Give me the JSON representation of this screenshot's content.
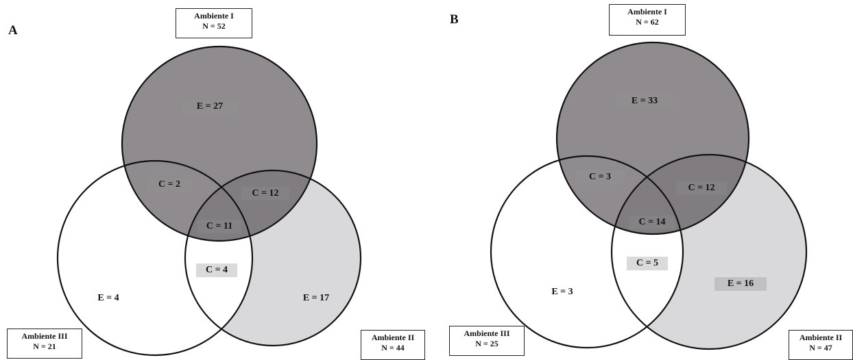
{
  "panels": [
    {
      "letter": "A",
      "env1": {
        "name": "Ambiente I",
        "n": "N = 52"
      },
      "env2": {
        "name": "Ambiente II",
        "n": "N = 44"
      },
      "env3": {
        "name": "Ambiente III",
        "n": "N = 21"
      },
      "labels": {
        "e1": "E = 27",
        "c12": "C = 12",
        "c13": "C = 2",
        "c123": "C = 11",
        "c23": "C = 4",
        "e3": "E = 4",
        "e2": "E = 17"
      }
    },
    {
      "letter": "B",
      "env1": {
        "name": "Ambiente I",
        "n": "N = 62"
      },
      "env2": {
        "name": "Ambiente II",
        "n": "N = 47"
      },
      "env3": {
        "name": "Ambiente III",
        "n": "N = 25"
      },
      "labels": {
        "e1": "E = 33",
        "c12": "C = 12",
        "c13": "C = 3",
        "c123": "C = 14",
        "c23": "C = 5",
        "e3": "E = 3",
        "e2": "E = 16"
      }
    }
  ],
  "colors": {
    "ambiente_i_fill": "#8f8b8e",
    "ambiente_ii_fill": "#d9d8da",
    "ambiente_iii_fill": "#ffffff",
    "stroke": "#111111"
  }
}
